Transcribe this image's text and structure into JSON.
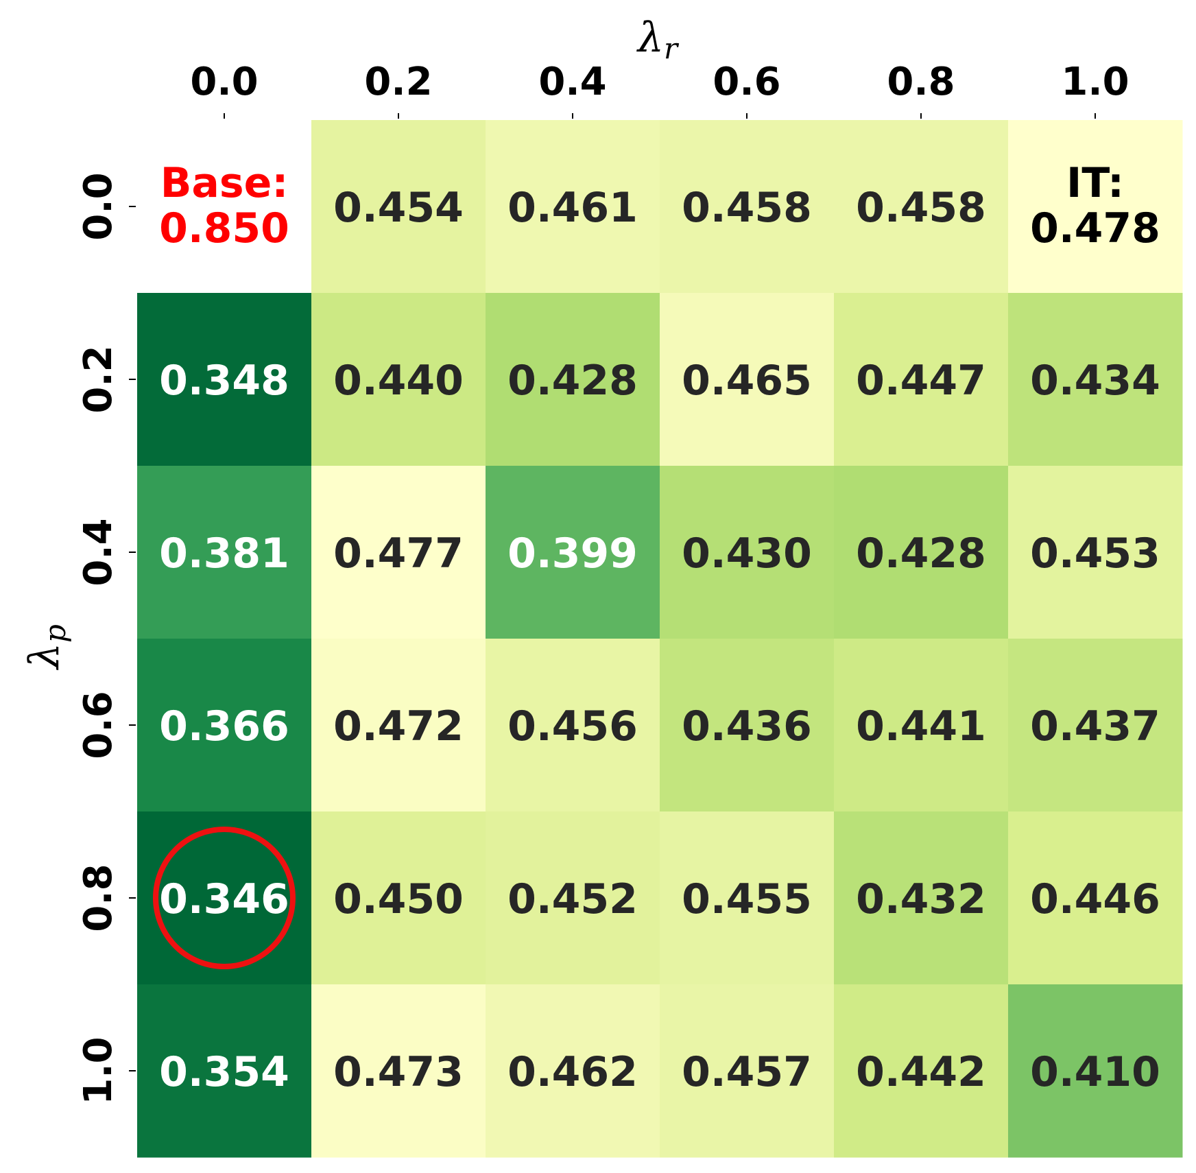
{
  "chart_data": {
    "type": "heatmap",
    "xlabel": "λ",
    "xlabel_sub": "r",
    "ylabel": "λ",
    "ylabel_sub": "p",
    "x_position": "top",
    "x_categories": [
      "0.0",
      "0.2",
      "0.4",
      "0.6",
      "0.8",
      "1.0"
    ],
    "y_categories": [
      "0.0",
      "0.2",
      "0.4",
      "0.6",
      "0.8",
      "1.0"
    ],
    "values": [
      [
        null,
        0.454,
        0.461,
        0.458,
        0.458,
        0.478
      ],
      [
        0.348,
        0.44,
        0.428,
        0.465,
        0.447,
        0.434
      ],
      [
        0.381,
        0.477,
        0.399,
        0.43,
        0.428,
        0.453
      ],
      [
        0.366,
        0.472,
        0.456,
        0.436,
        0.441,
        0.437
      ],
      [
        0.346,
        0.45,
        0.452,
        0.455,
        0.432,
        0.446
      ],
      [
        0.354,
        0.473,
        0.462,
        0.457,
        0.442,
        0.41
      ]
    ],
    "special_cells": [
      {
        "row": 0,
        "col": 0,
        "line1": "Base:",
        "line2": "0.850",
        "color": "#ff0000",
        "background": "#ffffff"
      },
      {
        "row": 0,
        "col": 5,
        "line1": "IT:",
        "line2": "0.478",
        "color": "#000000"
      }
    ],
    "highlight": {
      "row": 4,
      "col": 0,
      "shape": "circle",
      "color": "#ee1111"
    },
    "colormap": "YlGn",
    "value_range": [
      0.346,
      0.478
    ],
    "colorbar": false,
    "grid": false
  }
}
